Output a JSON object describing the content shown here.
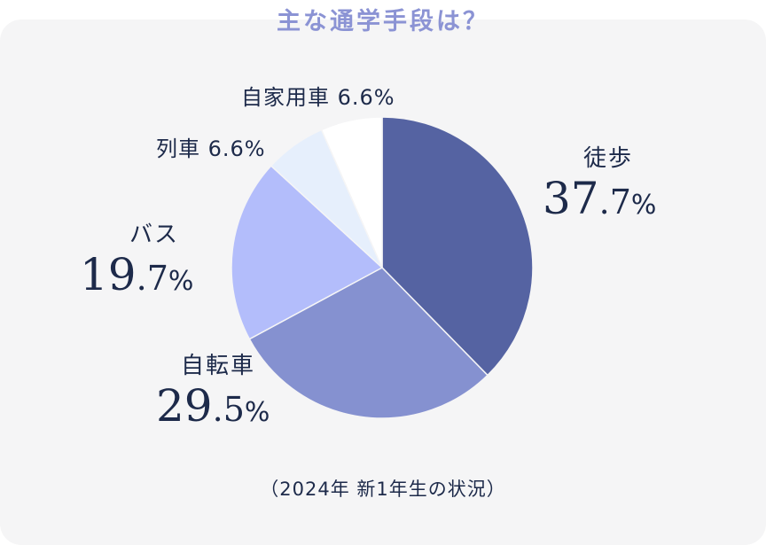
{
  "chart_data": {
    "type": "pie",
    "title": "主な通学手段は？",
    "note": "（2024年 新1年生の状況）",
    "unit": "%",
    "slices": [
      {
        "label": "徒歩",
        "value": 37.7,
        "int": "37",
        "dec": ".7",
        "color": "#5563a2"
      },
      {
        "label": "自転車",
        "value": 29.5,
        "int": "29",
        "dec": ".5",
        "color": "#8591d0"
      },
      {
        "label": "バス",
        "value": 19.7,
        "int": "19",
        "dec": ".7",
        "color": "#b3bdfb"
      },
      {
        "label": "列車",
        "value": 6.6,
        "text": "6.6%",
        "color": "#e6effc"
      },
      {
        "label": "自家用車",
        "value": 6.6,
        "text": "6.6%",
        "color": "#ffffff"
      }
    ]
  }
}
